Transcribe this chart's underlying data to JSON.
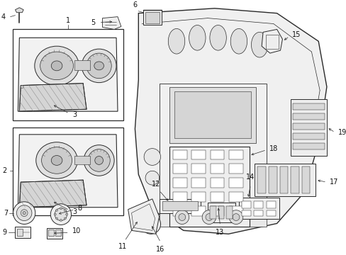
{
  "bg_color": "#ffffff",
  "line_color": "#2a2a2a",
  "fig_width": 4.89,
  "fig_height": 3.6,
  "dpi": 100,
  "label_fs": 7.0,
  "lw_main": 0.7,
  "lw_thin": 0.45,
  "lw_leader": 0.5,
  "gray_fill": "#d8d8d8",
  "light_fill": "#eeeeee",
  "white_fill": "#ffffff",
  "cluster_fill": "#e8e8e8"
}
